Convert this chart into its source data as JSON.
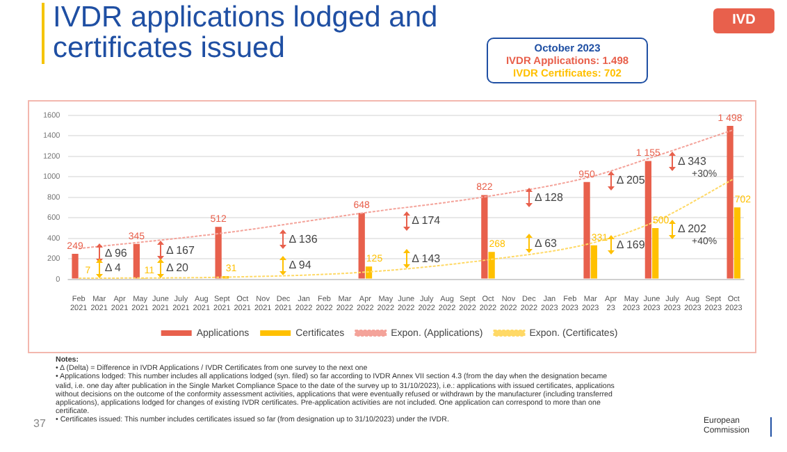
{
  "chart_data": {
    "type": "bar",
    "title": "IVDR applications lodged and certificates issued",
    "categories": [
      "Feb 2021",
      "Mar 2021",
      "Apr 2021",
      "May 2021",
      "June 2021",
      "July 2021",
      "Aug 2021",
      "Sept 2021",
      "Oct 2021",
      "Nov 2021",
      "Dec 2021",
      "Jan 2022",
      "Feb 2022",
      "Mar 2022",
      "Apr 2022",
      "May 2022",
      "June 2022",
      "July 2022",
      "Aug 2022",
      "Sept 2022",
      "Oct 2022",
      "Nov 2022",
      "Dec 2022",
      "Jan 2023",
      "Feb 2023",
      "Mar 2023",
      "Apr 23",
      "May 2023",
      "June 2023",
      "July 2023",
      "Aug 2023",
      "Sept 2023",
      "Oct 2023"
    ],
    "series": [
      {
        "name": "Applications",
        "color": "#e8604c",
        "values": [
          249,
          null,
          null,
          345,
          null,
          null,
          null,
          512,
          null,
          null,
          null,
          null,
          null,
          null,
          648,
          null,
          null,
          null,
          null,
          null,
          822,
          null,
          null,
          null,
          null,
          950,
          null,
          null,
          1155,
          null,
          null,
          null,
          1498
        ],
        "value_labels": [
          "249",
          null,
          null,
          "345",
          null,
          null,
          null,
          "512",
          null,
          null,
          null,
          null,
          null,
          null,
          "648",
          null,
          null,
          null,
          null,
          null,
          "822",
          null,
          null,
          null,
          null,
          "950",
          null,
          null,
          "1 155",
          null,
          null,
          null,
          "1 498"
        ]
      },
      {
        "name": "Certificates",
        "color": "#ffc000",
        "values": [
          7,
          null,
          null,
          11,
          null,
          null,
          null,
          31,
          null,
          null,
          null,
          null,
          null,
          null,
          125,
          null,
          null,
          null,
          null,
          null,
          268,
          null,
          null,
          null,
          null,
          331,
          null,
          null,
          500,
          null,
          null,
          null,
          702
        ],
        "value_labels": [
          "7",
          null,
          null,
          "11",
          null,
          null,
          null,
          "31",
          null,
          null,
          null,
          null,
          null,
          null,
          "125",
          null,
          null,
          null,
          null,
          null,
          "268",
          null,
          null,
          null,
          null,
          "331",
          null,
          null,
          "500",
          null,
          null,
          null,
          "702"
        ]
      },
      {
        "name": "Expon. (Applications)",
        "type": "line",
        "color": "#f4a39a",
        "line_style": "dotted",
        "marker": "none",
        "x": [
          "Feb 2021",
          "Sept 2021",
          "Apr 2022",
          "Oct 2022",
          "Mar 2023",
          "June 2023",
          "Oct 2023"
        ],
        "values": [
          300,
          450,
          650,
          810,
          1000,
          1190,
          1460
        ]
      },
      {
        "name": "Expon. (Certificates)",
        "type": "line",
        "color": "#ffd966",
        "line_style": "dotted",
        "marker": "none",
        "x": [
          "Feb 2021",
          "Sept 2021",
          "Apr 2022",
          "Oct 2022",
          "Mar 2023",
          "June 2023",
          "Oct 2023"
        ],
        "values": [
          10,
          20,
          70,
          190,
          350,
          550,
          980
        ]
      }
    ],
    "ylim": [
      0,
      1600
    ],
    "yticks": [
      0,
      200,
      400,
      600,
      800,
      1000,
      1200,
      1400,
      1600
    ],
    "grid": "y",
    "legend": "bottom",
    "annotations": [
      "Δ 96",
      "Δ 4",
      "Δ 167",
      "Δ 20",
      "Δ 136",
      "Δ 94",
      "Δ 174",
      "Δ 143",
      "Δ 128",
      "Δ 63",
      "Δ 205",
      "Δ 169",
      "Δ 343\n+30%",
      "Δ 202\n+40%",
      "IVD",
      "October 2023",
      "IVDR Applications: 1.498",
      "IVDR Certificates: 702",
      "37",
      "European Commission",
      "Notes:",
      "• Δ (Delta) = Difference in IVDR Applications / IVDR Certificates from one survey to the next one",
      "• Applications lodged: This number includes all applications lodged (syn. filed) so far according to IVDR Annex VII section 4.3 (from the day when the designation became valid, i.e. one day after publication in the Single Market Compliance Space to the date of the survey up to 31/10/2023), i.e.: applications with issued certificates, applications without decisions on the outcome of the conformity assessment activities, applications that were eventually refused or withdrawn by the manufacturer (including transferred applications), applications lodged for changes of existing IVDR certificates. Pre-application activities are not included. One application can correspond to more than one certificate.",
      "• Certificates issued: This number includes certificates issued so far (from designation up to 31/10/2023) under the IVDR."
    ]
  }
}
